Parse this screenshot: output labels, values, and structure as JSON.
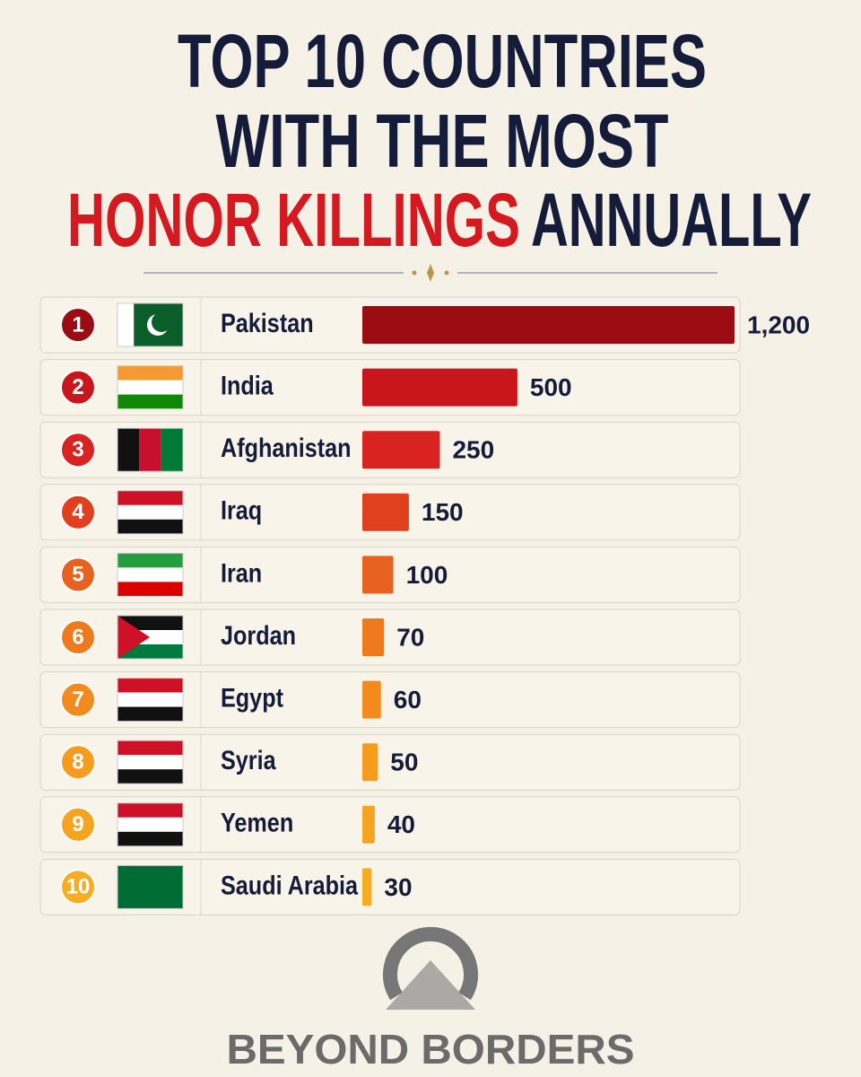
{
  "chart_data": {
    "type": "bar",
    "title_lines": [
      "TOP 10 COUNTRIES",
      "WITH THE MOST"
    ],
    "title_highlight": "HONOR KILLINGS",
    "title_end": "ANNUALLY",
    "ranks": [
      1,
      2,
      3,
      4,
      5,
      6,
      7,
      8,
      9,
      10
    ],
    "categories": [
      "Pakistan",
      "India",
      "Afghanistan",
      "Iraq",
      "Iran",
      "Jordan",
      "Egypt",
      "Syria",
      "Yemen",
      "Saudi Arabia"
    ],
    "values": [
      1200,
      500,
      250,
      150,
      100,
      70,
      60,
      50,
      40,
      30
    ],
    "value_labels": [
      "1,200",
      "500",
      "250",
      "150",
      "100",
      "70",
      "60",
      "50",
      "40",
      "30"
    ],
    "colors": [
      "#9b0d13",
      "#c8161c",
      "#d92320",
      "#e0401e",
      "#e8621f",
      "#ef7a1d",
      "#f28a1d",
      "#f59b1d",
      "#f6a41f",
      "#f7ad22"
    ],
    "brand": "BEYOND BORDERS"
  }
}
